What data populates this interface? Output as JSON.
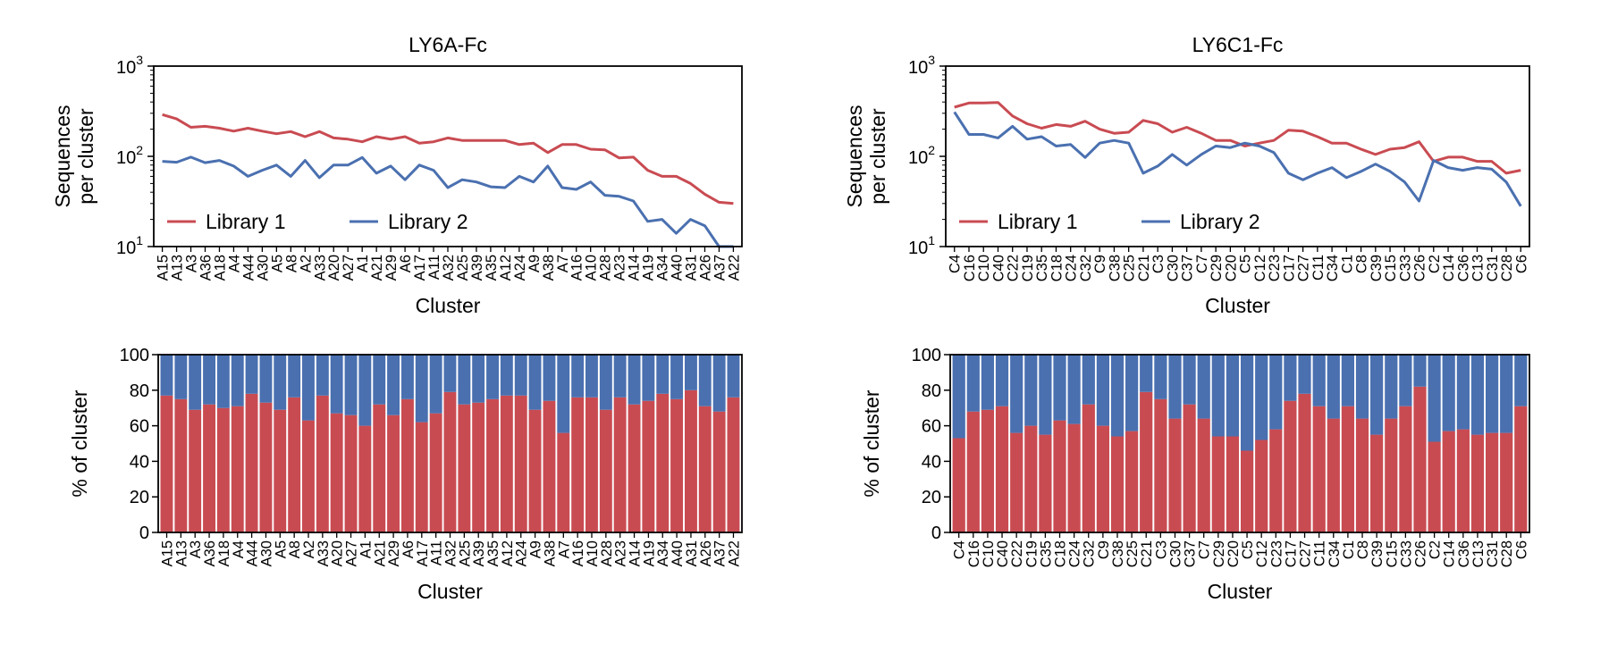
{
  "colors": {
    "library1": "#c94b52",
    "library2": "#4a70b0"
  },
  "chart_data": [
    {
      "id": "ly6a-line",
      "type": "line",
      "title": "LY6A-Fc",
      "xlabel": "Cluster",
      "ylabel_lines": [
        "Sequences",
        "per cluster"
      ],
      "yscale": "log",
      "ylim": [
        10,
        1000
      ],
      "yticks": [
        10,
        100,
        1000
      ],
      "ytick_base": "10",
      "ytick_exps": [
        "1",
        "2",
        "3"
      ],
      "legend": "lower-left",
      "categories": [
        "A15",
        "A13",
        "A3",
        "A36",
        "A18",
        "A4",
        "A44",
        "A30",
        "A5",
        "A8",
        "A2",
        "A33",
        "A20",
        "A27",
        "A1",
        "A21",
        "A29",
        "A6",
        "A17",
        "A11",
        "A32",
        "A25",
        "A39",
        "A35",
        "A12",
        "A24",
        "A9",
        "A38",
        "A7",
        "A16",
        "A10",
        "A28",
        "A23",
        "A14",
        "A19",
        "A34",
        "A40",
        "A31",
        "A26",
        "A37",
        "A22"
      ],
      "series": [
        {
          "name": "Library 1",
          "color_key": "library1",
          "values": [
            290,
            260,
            210,
            215,
            205,
            190,
            205,
            190,
            178,
            188,
            165,
            188,
            160,
            155,
            145,
            165,
            155,
            165,
            140,
            145,
            160,
            150,
            150,
            150,
            150,
            135,
            140,
            110,
            135,
            135,
            120,
            118,
            96,
            98,
            70,
            60,
            60,
            50,
            38,
            31,
            30
          ]
        },
        {
          "name": "Library 2",
          "color_key": "library2",
          "values": [
            88,
            86,
            98,
            85,
            90,
            78,
            60,
            70,
            80,
            60,
            90,
            58,
            80,
            80,
            97,
            65,
            78,
            55,
            80,
            70,
            45,
            55,
            52,
            46,
            45,
            60,
            52,
            78,
            45,
            43,
            52,
            37,
            36,
            32,
            19,
            20,
            14,
            20,
            17,
            10,
            10
          ]
        }
      ]
    },
    {
      "id": "ly6c1-line",
      "type": "line",
      "title": "LY6C1-Fc",
      "xlabel": "Cluster",
      "ylabel_lines": [
        "Sequences",
        "per cluster"
      ],
      "yscale": "log",
      "ylim": [
        10,
        1000
      ],
      "yticks": [
        10,
        100,
        1000
      ],
      "ytick_base": "10",
      "ytick_exps": [
        "1",
        "2",
        "3"
      ],
      "legend": "lower-left",
      "categories": [
        "C4",
        "C16",
        "C10",
        "C40",
        "C22",
        "C19",
        "C35",
        "C18",
        "C24",
        "C32",
        "C9",
        "C38",
        "C25",
        "C21",
        "C3",
        "C30",
        "C37",
        "C7",
        "C29",
        "C20",
        "C5",
        "C12",
        "C23",
        "C17",
        "C27",
        "C11",
        "C34",
        "C1",
        "C8",
        "C39",
        "C15",
        "C33",
        "C26",
        "C2",
        "C14",
        "C36",
        "C13",
        "C31",
        "C28",
        "C6"
      ],
      "series": [
        {
          "name": "Library 1",
          "color_key": "library1",
          "values": [
            350,
            390,
            390,
            395,
            280,
            230,
            205,
            225,
            215,
            245,
            200,
            180,
            185,
            250,
            230,
            185,
            210,
            180,
            150,
            150,
            130,
            140,
            150,
            195,
            190,
            165,
            140,
            140,
            120,
            105,
            120,
            125,
            145,
            88,
            98,
            98,
            88,
            88,
            65,
            70
          ]
        },
        {
          "name": "Library 2",
          "color_key": "library2",
          "values": [
            310,
            175,
            175,
            160,
            215,
            155,
            165,
            130,
            135,
            97,
            140,
            150,
            140,
            65,
            78,
            105,
            80,
            105,
            130,
            125,
            140,
            130,
            110,
            65,
            55,
            65,
            75,
            58,
            68,
            82,
            68,
            52,
            32,
            90,
            75,
            70,
            75,
            72,
            52,
            28
          ]
        }
      ]
    },
    {
      "id": "ly6a-bar",
      "type": "bar",
      "stacked": true,
      "xlabel": "Cluster",
      "ylabel": "% of cluster",
      "ylim": [
        0,
        100
      ],
      "yticks": [
        0,
        20,
        40,
        60,
        80,
        100
      ],
      "categories": [
        "A15",
        "A13",
        "A3",
        "A36",
        "A18",
        "A4",
        "A44",
        "A30",
        "A5",
        "A8",
        "A2",
        "A33",
        "A20",
        "A27",
        "A1",
        "A21",
        "A29",
        "A6",
        "A17",
        "A11",
        "A32",
        "A25",
        "A39",
        "A35",
        "A12",
        "A24",
        "A9",
        "A38",
        "A7",
        "A16",
        "A10",
        "A28",
        "A23",
        "A14",
        "A19",
        "A34",
        "A40",
        "A31",
        "A26",
        "A37",
        "A22"
      ],
      "series": [
        {
          "name": "Library 1",
          "color_key": "library1",
          "values": [
            77,
            75,
            69,
            72,
            70,
            71,
            78,
            73,
            69,
            76,
            63,
            77,
            67,
            66,
            60,
            72,
            66,
            75,
            62,
            67,
            79,
            72,
            73,
            75,
            77,
            77,
            69,
            74,
            56,
            76,
            76,
            69,
            76,
            72,
            74,
            78,
            75,
            80,
            71,
            68,
            76
          ]
        },
        {
          "name": "Library 2",
          "color_key": "library2",
          "values": [
            23,
            25,
            31,
            28,
            30,
            29,
            22,
            27,
            31,
            24,
            37,
            23,
            33,
            34,
            40,
            28,
            34,
            25,
            38,
            33,
            21,
            28,
            27,
            25,
            23,
            23,
            31,
            26,
            44,
            24,
            24,
            31,
            24,
            28,
            26,
            22,
            25,
            20,
            29,
            32,
            24
          ]
        }
      ]
    },
    {
      "id": "ly6c1-bar",
      "type": "bar",
      "stacked": true,
      "xlabel": "Cluster",
      "ylabel": "% of cluster",
      "ylim": [
        0,
        100
      ],
      "yticks": [
        0,
        20,
        40,
        60,
        80,
        100
      ],
      "categories": [
        "C4",
        "C16",
        "C10",
        "C40",
        "C22",
        "C19",
        "C35",
        "C18",
        "C24",
        "C32",
        "C9",
        "C38",
        "C25",
        "C21",
        "C3",
        "C30",
        "C37",
        "C7",
        "C29",
        "C20",
        "C5",
        "C12",
        "C23",
        "C17",
        "C27",
        "C11",
        "C34",
        "C1",
        "C8",
        "C39",
        "C15",
        "C33",
        "C26",
        "C2",
        "C14",
        "C36",
        "C13",
        "C31",
        "C28",
        "C6"
      ],
      "series": [
        {
          "name": "Library 1",
          "color_key": "library1",
          "values": [
            53,
            68,
            69,
            71,
            56,
            60,
            55,
            63,
            61,
            72,
            60,
            54,
            57,
            79,
            75,
            64,
            72,
            64,
            54,
            54,
            46,
            52,
            58,
            74,
            78,
            71,
            64,
            71,
            64,
            55,
            64,
            71,
            82,
            51,
            57,
            58,
            55,
            56,
            56,
            71
          ]
        },
        {
          "name": "Library 2",
          "color_key": "library2",
          "values": [
            47,
            32,
            31,
            29,
            44,
            40,
            45,
            37,
            39,
            28,
            40,
            46,
            43,
            21,
            25,
            36,
            28,
            36,
            46,
            46,
            54,
            48,
            42,
            26,
            22,
            29,
            36,
            29,
            36,
            45,
            36,
            29,
            18,
            49,
            43,
            42,
            45,
            44,
            44,
            29
          ]
        }
      ]
    }
  ]
}
